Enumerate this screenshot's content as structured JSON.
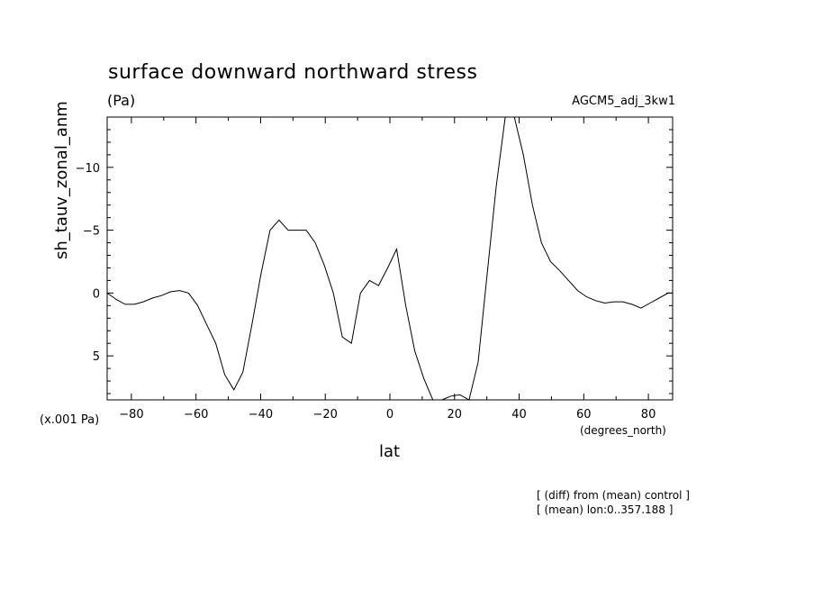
{
  "chart_data": {
    "type": "line",
    "title": "surface downward northward stress",
    "units": "(Pa)",
    "model": "AGCM5_adj_3kw1",
    "ylabel": "sh_tauv_zonal_anm",
    "xlabel": "lat",
    "x_units": "(degrees_north)",
    "y_scale_note": "(x.001 Pa)",
    "notes": [
      "[ (diff) from (mean) control ]",
      "[ (mean) lon:0..357.188 ]"
    ],
    "xlim": [
      -87.5,
      87.5
    ],
    "ylim": [
      8.5,
      -14
    ],
    "y_inverted": true,
    "grid": false,
    "xticks": [
      -80,
      -60,
      -40,
      -20,
      0,
      20,
      40,
      60,
      80
    ],
    "xtick_labels": [
      "−80",
      "−60",
      "−40",
      "−20",
      "0",
      "20",
      "40",
      "60",
      "80"
    ],
    "yticks": [
      -10,
      -5,
      0,
      5
    ],
    "ytick_labels": [
      "−10",
      "−5",
      "0",
      "5"
    ],
    "series": [
      {
        "x": [
          -87.5,
          -84.7,
          -81.9,
          -79.1,
          -76.3,
          -73.5,
          -70.7,
          -67.9,
          -65.1,
          -62.3,
          -59.5,
          -56.7,
          -53.9,
          -51.1,
          -48.3,
          -45.5,
          -42.7,
          -39.9,
          -37.1,
          -34.3,
          -31.5,
          -28.7,
          -25.9,
          -23.1,
          -20.3,
          -17.5,
          -14.7,
          -11.9,
          -9.1,
          -6.3,
          -3.5,
          -0.7,
          2.1,
          4.9,
          7.7,
          10.5,
          13.3,
          16.1,
          18.9,
          21.7,
          24.5,
          27.3,
          30.1,
          32.9,
          35.7,
          38.5,
          41.3,
          44.1,
          46.9,
          49.7,
          52.5,
          55.3,
          58.1,
          60.9,
          63.7,
          66.5,
          69.3,
          72.1,
          74.9,
          77.7,
          80.5,
          83.3,
          86.1,
          87.5
        ],
        "y": [
          0.0,
          0.5,
          0.9,
          0.9,
          0.7,
          0.4,
          0.2,
          -0.1,
          -0.2,
          0.0,
          1.0,
          2.5,
          4.0,
          6.5,
          7.7,
          6.3,
          2.5,
          -1.5,
          -5.0,
          -5.8,
          -5.0,
          -5.0,
          -5.0,
          -4.0,
          -2.2,
          0.0,
          3.5,
          4.0,
          0.0,
          -1.0,
          -0.6,
          -2.0,
          -3.5,
          1.0,
          4.6,
          6.8,
          8.5,
          8.6,
          8.2,
          8.1,
          8.5,
          5.5,
          -1.5,
          -8.5,
          -14.0,
          -14.4,
          -11.0,
          -7.0,
          -4.0,
          -2.5,
          -1.8,
          -1.0,
          -0.2,
          0.3,
          0.6,
          0.8,
          0.7,
          0.7,
          0.9,
          1.2,
          0.8,
          0.4,
          0.0,
          0.0
        ]
      }
    ]
  }
}
